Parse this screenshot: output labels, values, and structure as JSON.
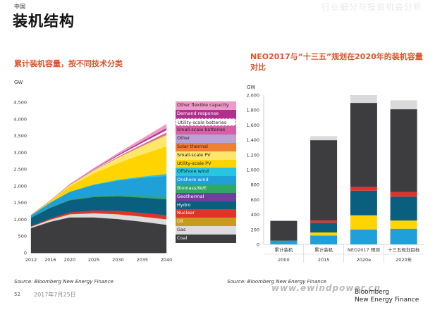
{
  "header": {
    "kicker": "中国",
    "title": "装机结构",
    "watermark_top": "行业细分与投资机会分析"
  },
  "left_chart": {
    "subtitle": "累计装机容量，按不同技术分类",
    "source": "Source: Bloomberg New Energy Finance"
  },
  "right_chart": {
    "subtitle": "NEO2017与“十三五”规划在2020年的装机容量对比",
    "source": "Source: Bloomberg New Energy Finance"
  },
  "footer": {
    "page_number": "52",
    "date": "2017年7月25日",
    "brand_line1": "Bloomberg",
    "brand_line2": "New Energy Finance",
    "watermark_url": "www.ewindpower.cn"
  },
  "chart_data": [
    {
      "type": "area",
      "stacked": true,
      "ylabel": "GW",
      "ylim": [
        0,
        4500
      ],
      "yticks": [
        "0",
        "500",
        "1,000",
        "1,500",
        "2,000",
        "2,500",
        "3,000",
        "3,500",
        "4,000",
        "4,500"
      ],
      "xlim": [
        2012,
        2040
      ],
      "xticks": [
        "2012",
        "2016",
        "2020",
        "2025",
        "2030",
        "2035",
        "2040"
      ],
      "x": [
        2012,
        2016,
        2020,
        2025,
        2030,
        2035,
        2040
      ],
      "legend_position": "right",
      "series": [
        {
          "name": "Coal",
          "color": "#3d3d3f",
          "values": [
            740,
            930,
            1060,
            1060,
            1010,
            930,
            840
          ]
        },
        {
          "name": "Gas",
          "color": "#dcdcdc",
          "values": [
            40,
            60,
            90,
            120,
            140,
            150,
            160
          ]
        },
        {
          "name": "Oil",
          "color": "#c79c1c",
          "values": [
            5,
            5,
            5,
            5,
            5,
            5,
            5
          ]
        },
        {
          "name": "Nuclear",
          "color": "#e2332b",
          "values": [
            12,
            30,
            55,
            80,
            100,
            110,
            120
          ]
        },
        {
          "name": "Hydro",
          "color": "#0a5f7e",
          "values": [
            250,
            320,
            360,
            400,
            430,
            450,
            470
          ]
        },
        {
          "name": "Geothermal",
          "color": "#6f3f9c",
          "values": [
            1,
            1,
            1,
            2,
            2,
            3,
            3
          ]
        },
        {
          "name": "Biomass/W/E",
          "color": "#2fa866",
          "values": [
            10,
            15,
            20,
            30,
            40,
            50,
            60
          ]
        },
        {
          "name": "Onshore wind",
          "color": "#1fa0d8",
          "values": [
            60,
            140,
            230,
            330,
            430,
            540,
            640
          ]
        },
        {
          "name": "Offshore wind",
          "color": "#27c5df",
          "values": [
            1,
            2,
            5,
            15,
            25,
            40,
            60
          ]
        },
        {
          "name": "Utility-scale PV",
          "color": "#ffd400",
          "values": [
            3,
            45,
            160,
            330,
            500,
            660,
            820
          ]
        },
        {
          "name": "Small-scale PV",
          "color": "#fde76a",
          "values": [
            1,
            10,
            40,
            90,
            160,
            250,
            340
          ]
        },
        {
          "name": "Solar thermal",
          "color": "#f08033",
          "values": [
            0,
            0,
            2,
            5,
            10,
            15,
            20
          ]
        },
        {
          "name": "Other",
          "color": "#b8a4d2",
          "values": [
            5,
            5,
            5,
            5,
            5,
            5,
            5
          ]
        },
        {
          "name": "Small-scale batteries",
          "color": "#d65fa8",
          "values": [
            0,
            0,
            1,
            5,
            15,
            30,
            50
          ]
        },
        {
          "name": "Utility-scale batteries",
          "color": "#ffffff",
          "values": [
            0,
            0,
            2,
            10,
            30,
            50,
            70
          ]
        },
        {
          "name": "Demand response",
          "color": "#b0308d",
          "values": [
            0,
            0,
            5,
            15,
            30,
            45,
            60
          ]
        },
        {
          "name": "Other flexible capacity",
          "color": "#ee99c8",
          "values": [
            0,
            0,
            10,
            25,
            50,
            80,
            120
          ]
        }
      ]
    },
    {
      "type": "bar",
      "stacked": true,
      "ylabel": "GW",
      "ylim": [
        0,
        2000
      ],
      "yticks": [
        "0",
        "200",
        "400",
        "600",
        "800",
        "1,000",
        "1,200",
        "1,400",
        "1,600",
        "1,800",
        "2,000"
      ],
      "categories": [
        "累计装机 2000",
        "累计装机 2015",
        "NEO2017 预测 2020e",
        "十三五规划目标 2020年"
      ],
      "category_top": [
        "累计装机",
        "累计装机",
        "NEO2017 预测",
        "十三五规划目标"
      ],
      "category_bottom": [
        "2000",
        "2015",
        "2020e",
        "2020年"
      ],
      "series": [
        {
          "name": "Hydro",
          "color": "#1fa0d8",
          "values": [
            50,
            120,
            200,
            210
          ]
        },
        {
          "name": "Small-scale PV",
          "color": "#ffd400",
          "values": [
            0,
            40,
            190,
            110
          ]
        },
        {
          "name": "Onshore wind",
          "color": "#0a5f7e",
          "values": [
            0,
            130,
            330,
            320
          ]
        },
        {
          "name": "Nuclear",
          "color": "#e2332b",
          "values": [
            0,
            30,
            50,
            60
          ]
        },
        {
          "name": "Coal",
          "color": "#3d3d3f",
          "values": [
            265,
            1075,
            1125,
            1110
          ]
        },
        {
          "name": "Other",
          "color": "#dadada",
          "values": [
            0,
            55,
            105,
            120
          ]
        }
      ]
    }
  ]
}
